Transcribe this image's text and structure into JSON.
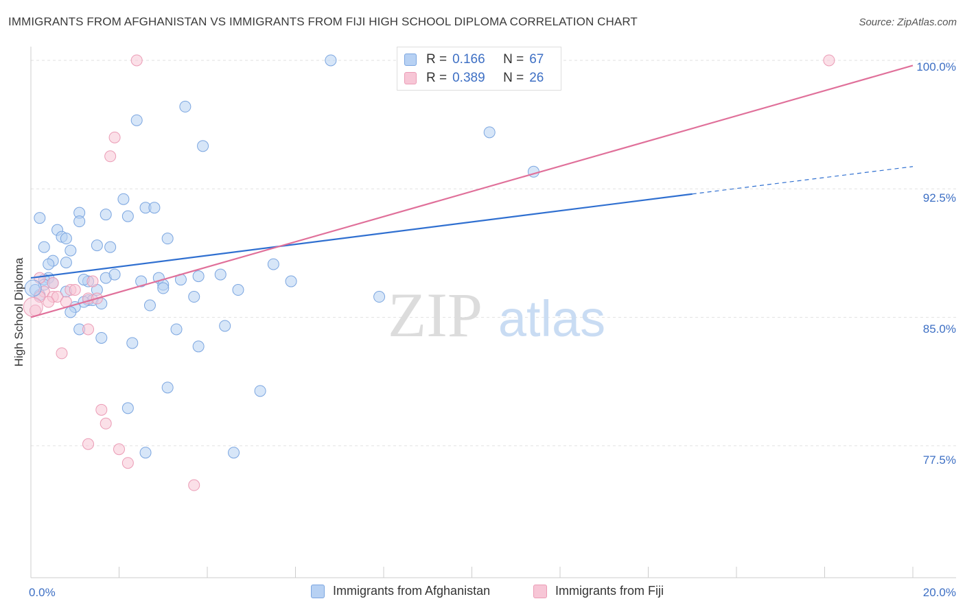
{
  "title": "IMMIGRANTS FROM AFGHANISTAN VS IMMIGRANTS FROM FIJI HIGH SCHOOL DIPLOMA CORRELATION CHART",
  "source": "Source: ZipAtlas.com",
  "watermark": {
    "zip": "ZIP",
    "atlas": "atlas"
  },
  "legend": {
    "r_label": "R =",
    "n_label": "N =",
    "rows": [
      {
        "name": "Immigrants from Afghanistan",
        "r": "0.166",
        "n": "67",
        "fill": "#b7d1f3",
        "stroke": "#7aa5e0"
      },
      {
        "name": "Immigrants from Fiji",
        "r": "0.389",
        "n": "26",
        "fill": "#f7c6d6",
        "stroke": "#eb9bb5"
      }
    ]
  },
  "chart_data": {
    "type": "scatter",
    "xlabel": "",
    "ylabel": "High School Diploma",
    "xlim": [
      0,
      20
    ],
    "ylim": [
      70.5,
      101.5
    ],
    "x_tick_labels": [
      {
        "value": 0,
        "label": "0.0%"
      },
      {
        "value": 20,
        "label": "20.0%"
      }
    ],
    "y_tick_labels": [
      {
        "value": 100,
        "label": "100.0%"
      },
      {
        "value": 92.5,
        "label": "92.5%"
      },
      {
        "value": 85,
        "label": "85.0%"
      },
      {
        "value": 77.5,
        "label": "77.5%"
      }
    ],
    "gridlines_y": [
      100.7,
      93.2,
      85.7,
      78.2
    ],
    "series": [
      {
        "name": "Immigrants from Afghanistan",
        "color": "#7aa5e0",
        "fill": "#b7d1f3",
        "points": [
          [
            6.8,
            100.7
          ],
          [
            2.4,
            97.2
          ],
          [
            3.5,
            98.0
          ],
          [
            3.9,
            95.7
          ],
          [
            10.4,
            96.5
          ],
          [
            11.4,
            94.2
          ],
          [
            2.1,
            92.6
          ],
          [
            2.6,
            92.1
          ],
          [
            2.8,
            92.1
          ],
          [
            0.2,
            91.5
          ],
          [
            0.6,
            90.8
          ],
          [
            1.1,
            91.8
          ],
          [
            1.1,
            91.3
          ],
          [
            1.7,
            91.7
          ],
          [
            2.2,
            91.6
          ],
          [
            0.7,
            90.4
          ],
          [
            0.8,
            90.3
          ],
          [
            0.3,
            89.8
          ],
          [
            0.9,
            89.6
          ],
          [
            1.5,
            89.9
          ],
          [
            1.8,
            89.8
          ],
          [
            3.1,
            90.3
          ],
          [
            0.5,
            89.0
          ],
          [
            0.8,
            88.9
          ],
          [
            0.4,
            88.8
          ],
          [
            5.5,
            88.8
          ],
          [
            0.4,
            88.0
          ],
          [
            0.3,
            87.9
          ],
          [
            1.3,
            87.8
          ],
          [
            1.7,
            88.0
          ],
          [
            1.9,
            88.2
          ],
          [
            2.5,
            87.8
          ],
          [
            2.9,
            88.0
          ],
          [
            3.4,
            87.9
          ],
          [
            3.8,
            88.1
          ],
          [
            4.3,
            88.2
          ],
          [
            5.9,
            87.8
          ],
          [
            3.0,
            87.6
          ],
          [
            3.0,
            87.4
          ],
          [
            1.5,
            87.3
          ],
          [
            0.8,
            87.2
          ],
          [
            4.7,
            87.3
          ],
          [
            0.2,
            87.0
          ],
          [
            3.7,
            86.9
          ],
          [
            7.9,
            86.9
          ],
          [
            1.3,
            86.7
          ],
          [
            1.4,
            86.7
          ],
          [
            1.2,
            86.6
          ],
          [
            1.6,
            86.5
          ],
          [
            2.7,
            86.4
          ],
          [
            1.0,
            86.3
          ],
          [
            0.9,
            86.0
          ],
          [
            1.1,
            85.0
          ],
          [
            1.6,
            84.5
          ],
          [
            2.3,
            84.2
          ],
          [
            3.3,
            85.0
          ],
          [
            4.4,
            85.2
          ],
          [
            3.8,
            84.0
          ],
          [
            3.1,
            81.6
          ],
          [
            5.2,
            81.4
          ],
          [
            2.2,
            80.4
          ],
          [
            2.6,
            77.8
          ],
          [
            4.6,
            77.8
          ],
          [
            0.1,
            87.3
          ],
          [
            0.3,
            87.6
          ],
          [
            1.2,
            87.9
          ],
          [
            0.5,
            87.7
          ]
        ]
      },
      {
        "name": "Immigrants from Fiji",
        "color": "#eb9bb5",
        "fill": "#f7c6d6",
        "points": [
          [
            2.4,
            100.7
          ],
          [
            18.1,
            100.7
          ],
          [
            1.9,
            96.2
          ],
          [
            1.8,
            95.1
          ],
          [
            0.2,
            88.0
          ],
          [
            0.5,
            87.7
          ],
          [
            1.4,
            87.8
          ],
          [
            0.3,
            87.2
          ],
          [
            0.9,
            87.3
          ],
          [
            1.0,
            87.3
          ],
          [
            0.5,
            86.9
          ],
          [
            0.6,
            86.9
          ],
          [
            1.3,
            86.8
          ],
          [
            1.5,
            86.8
          ],
          [
            0.4,
            86.6
          ],
          [
            0.8,
            86.6
          ],
          [
            0.1,
            86.1
          ],
          [
            1.3,
            85.0
          ],
          [
            0.7,
            83.6
          ],
          [
            1.6,
            80.3
          ],
          [
            1.7,
            79.5
          ],
          [
            1.3,
            78.3
          ],
          [
            2.0,
            78.0
          ],
          [
            2.2,
            77.2
          ],
          [
            3.7,
            75.9
          ],
          [
            0.2,
            86.9
          ]
        ]
      }
    ],
    "trend_lines": [
      {
        "series": "Immigrants from Afghanistan",
        "x0": 0,
        "y0": 88.0,
        "x1": 15.0,
        "y1": 92.9,
        "dashed_to_x": 20,
        "dashed_to_y": 94.5
      },
      {
        "series": "Immigrants from Fiji",
        "x0": 0,
        "y0": 85.7,
        "x1": 20,
        "y1": 100.4
      }
    ]
  }
}
